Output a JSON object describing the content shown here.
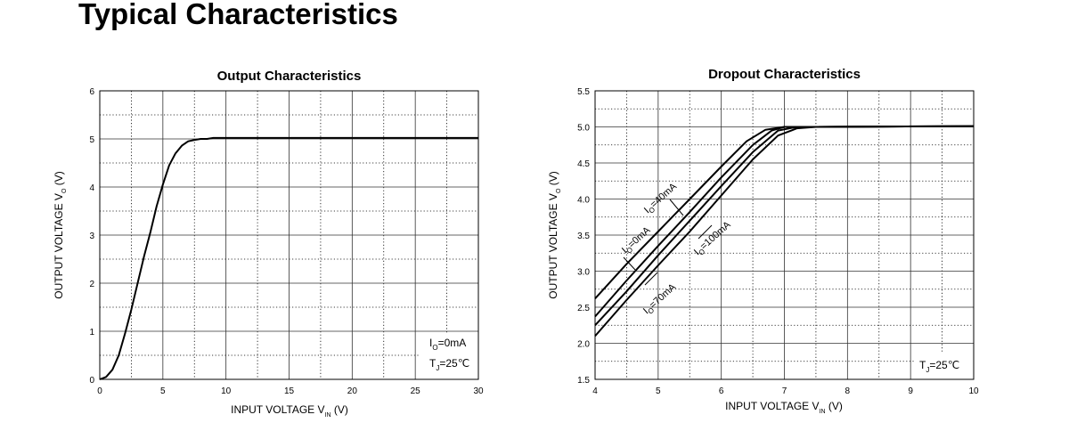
{
  "page": {
    "title": "Typical Characteristics"
  },
  "chart_data": [
    {
      "type": "line",
      "title": "Output  Characteristics",
      "xlabel": {
        "main": "INPUT VOLTAGE",
        "var": "V",
        "sub": "IN",
        "unit": "(V)"
      },
      "ylabel": {
        "main": "OUTPUT VOLTAGE",
        "var": "V",
        "sub": "O",
        "unit": "(V)"
      },
      "xlim": [
        0,
        30
      ],
      "ylim": [
        0,
        6
      ],
      "xticks": [
        0,
        5,
        10,
        15,
        20,
        25,
        30
      ],
      "xtick_labels": [
        "0",
        "5",
        "10",
        "15",
        "20",
        "25",
        "30"
      ],
      "yticks": [
        0,
        1,
        2,
        3,
        4,
        5,
        6
      ],
      "ytick_labels": [
        "0",
        "1",
        "2",
        "3",
        "4",
        "5",
        "6"
      ],
      "grid": "solid major, dotted minor",
      "annotations": [
        {
          "main": "I",
          "sub": "O",
          "rest": "=0mA"
        },
        {
          "main": "T",
          "sub": "J",
          "rest": "=25℃"
        }
      ],
      "series": [
        {
          "x": [
            0,
            0.5,
            1,
            1.5,
            2,
            2.5,
            3,
            3.5,
            4,
            4.5,
            5,
            5.5,
            6,
            6.5,
            7,
            7.5,
            8,
            8.5,
            9,
            10,
            15,
            20,
            25,
            30
          ],
          "y": [
            0,
            0.05,
            0.2,
            0.5,
            0.95,
            1.45,
            2.0,
            2.55,
            3.05,
            3.6,
            4.05,
            4.45,
            4.7,
            4.86,
            4.95,
            4.98,
            5.0,
            5.0,
            5.02,
            5.02,
            5.02,
            5.02,
            5.02,
            5.02
          ]
        }
      ]
    },
    {
      "type": "line",
      "title": "Dropout Characteristics",
      "xlabel": {
        "main": "INPUT VOLTAGE",
        "var": "V",
        "sub": "IN",
        "unit": "(V)"
      },
      "ylabel": {
        "main": "OUTPUT VOLTAGE",
        "var": "V",
        "sub": "O",
        "unit": "(V)"
      },
      "xlim": [
        4,
        10
      ],
      "ylim": [
        1.5,
        5.5
      ],
      "xticks": [
        4,
        5,
        6,
        7,
        8,
        9,
        10
      ],
      "xtick_labels": [
        "4",
        "5",
        "6",
        "7",
        "8",
        "9",
        "10"
      ],
      "yticks": [
        1.5,
        2.0,
        2.5,
        3.0,
        3.5,
        4.0,
        4.5,
        5.0,
        5.5
      ],
      "ytick_labels": [
        "1.5",
        "2.0",
        "2.5",
        "3.0",
        "3.5",
        "4.0",
        "4.5",
        "5.0",
        "5.5"
      ],
      "grid": "solid major, dotted minor",
      "annotations": [
        {
          "main": "T",
          "sub": "J",
          "rest": "=25℃"
        }
      ],
      "series": [
        {
          "label": {
            "main": "I",
            "sub": "O",
            "rest": "=0mA"
          },
          "x": [
            4,
            4.5,
            5,
            5.5,
            6,
            6.4,
            6.7,
            7,
            7.5,
            10
          ],
          "y": [
            2.62,
            3.1,
            3.55,
            4.0,
            4.45,
            4.8,
            4.96,
            5.0,
            5.0,
            5.01
          ]
        },
        {
          "label": {
            "main": "I",
            "sub": "O",
            "rest": "=40mA"
          },
          "x": [
            4,
            4.5,
            5,
            5.5,
            6,
            6.5,
            6.8,
            7,
            7.5,
            10
          ],
          "y": [
            2.37,
            2.87,
            3.35,
            3.82,
            4.3,
            4.75,
            4.95,
            5.0,
            5.0,
            5.01
          ]
        },
        {
          "label": {
            "main": "I",
            "sub": "O",
            "rest": "=70mA"
          },
          "x": [
            4,
            4.5,
            5,
            5.5,
            6,
            6.5,
            6.9,
            7.2,
            7.5,
            10
          ],
          "y": [
            2.25,
            2.72,
            3.22,
            3.7,
            4.18,
            4.65,
            4.95,
            5.0,
            5.0,
            5.01
          ]
        },
        {
          "label": {
            "main": "I",
            "sub": "O",
            "rest": "=100mA"
          },
          "x": [
            4,
            4.5,
            5,
            5.5,
            6,
            6.5,
            6.9,
            7.2,
            7.5,
            10
          ],
          "y": [
            2.1,
            2.6,
            3.08,
            3.55,
            4.05,
            4.55,
            4.88,
            4.98,
            5.0,
            5.01
          ]
        }
      ]
    }
  ]
}
